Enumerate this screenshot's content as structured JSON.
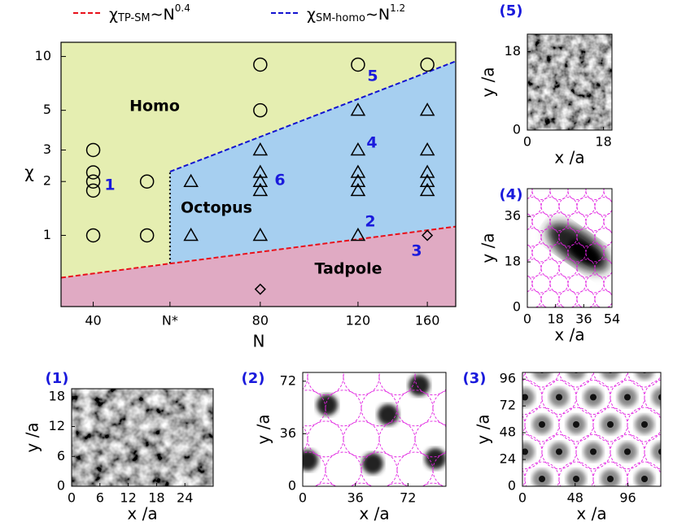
{
  "chart_data": [
    {
      "type": "phase",
      "xlabel": "N",
      "ylabel": "χ",
      "log_x": true,
      "log_y": true,
      "xlim": [
        35,
        180
      ],
      "ylim": [
        0.4,
        12
      ],
      "xticks": [
        40,
        {
          "value": 55,
          "label": "N*"
        },
        80,
        120,
        160
      ],
      "yticks": [
        1,
        2,
        3,
        5,
        10
      ],
      "regions": [
        {
          "name": "Homo",
          "color": "#e5eeb1"
        },
        {
          "name": "Octopus",
          "color": "#a6cff0"
        },
        {
          "name": "Tadpole",
          "color": "#e0aac3"
        }
      ],
      "boundaries": [
        {
          "name": [
            "χ",
            "TP-SM",
            "∼N",
            "0.4"
          ],
          "color": "#e8101a",
          "x": [
            35,
            180
          ],
          "values": [
            0.58,
            1.12
          ]
        },
        {
          "name": [
            "χ",
            "SM-homo",
            "∼N",
            "1.2"
          ],
          "color": "#1212d0",
          "x": [
            55,
            180
          ],
          "values": [
            2.27,
            9.4
          ]
        }
      ],
      "series": [
        {
          "marker": "circle",
          "x": [
            40,
            40,
            40,
            40,
            40,
            50,
            50,
            80,
            80,
            120,
            160
          ],
          "values": [
            3,
            2.25,
            2,
            1.78,
            1,
            2,
            1,
            9,
            5,
            9,
            9
          ]
        },
        {
          "marker": "triangle",
          "x": [
            60,
            60,
            80,
            80,
            80,
            80,
            80,
            120,
            120,
            120,
            120,
            120,
            120,
            160,
            160,
            160,
            160,
            160
          ],
          "values": [
            2,
            1,
            3,
            2.25,
            2,
            1.78,
            1,
            5,
            3,
            2.25,
            2,
            1.78,
            1,
            5,
            3,
            2.25,
            2,
            1.78
          ]
        },
        {
          "marker": "diamond",
          "x": [
            80,
            160
          ],
          "values": [
            0.5,
            1
          ]
        }
      ],
      "annotations": [
        "1",
        "2",
        "3",
        "4",
        "5",
        "6"
      ]
    },
    {
      "type": "image",
      "label": "(5)",
      "xlabel": "x /a",
      "ylabel": "y /a",
      "xlim": [
        0,
        20
      ],
      "ylim": [
        0,
        22
      ],
      "xticks": [
        0,
        18
      ],
      "yticks": [
        0,
        18
      ]
    },
    {
      "type": "image",
      "label": "(4)",
      "xlabel": "x /a",
      "ylabel": "y /a",
      "xlim": [
        0,
        54
      ],
      "ylim": [
        0,
        47
      ],
      "xticks": [
        0,
        18,
        36,
        54
      ],
      "yticks": [
        0,
        18,
        36
      ]
    },
    {
      "type": "image",
      "label": "(1)",
      "xlabel": "x /a",
      "ylabel": "y /a",
      "xlim": [
        0,
        30
      ],
      "ylim": [
        0,
        19.6
      ],
      "xticks": [
        0,
        6,
        12,
        18,
        24
      ],
      "yticks": [
        0,
        6,
        12,
        18
      ]
    },
    {
      "type": "image",
      "label": "(2)",
      "xlabel": "x /a",
      "ylabel": "y /a",
      "xlim": [
        0,
        98
      ],
      "ylim": [
        0,
        78
      ],
      "xticks": [
        0,
        36,
        72
      ],
      "yticks": [
        0,
        36,
        72
      ]
    },
    {
      "type": "image",
      "label": "(3)",
      "xlabel": "x /a",
      "ylabel": "y /a",
      "xlim": [
        0,
        126
      ],
      "ylim": [
        0,
        102
      ],
      "xticks": [
        0,
        48,
        96
      ],
      "yticks": [
        0,
        24,
        48,
        72,
        96
      ]
    }
  ]
}
